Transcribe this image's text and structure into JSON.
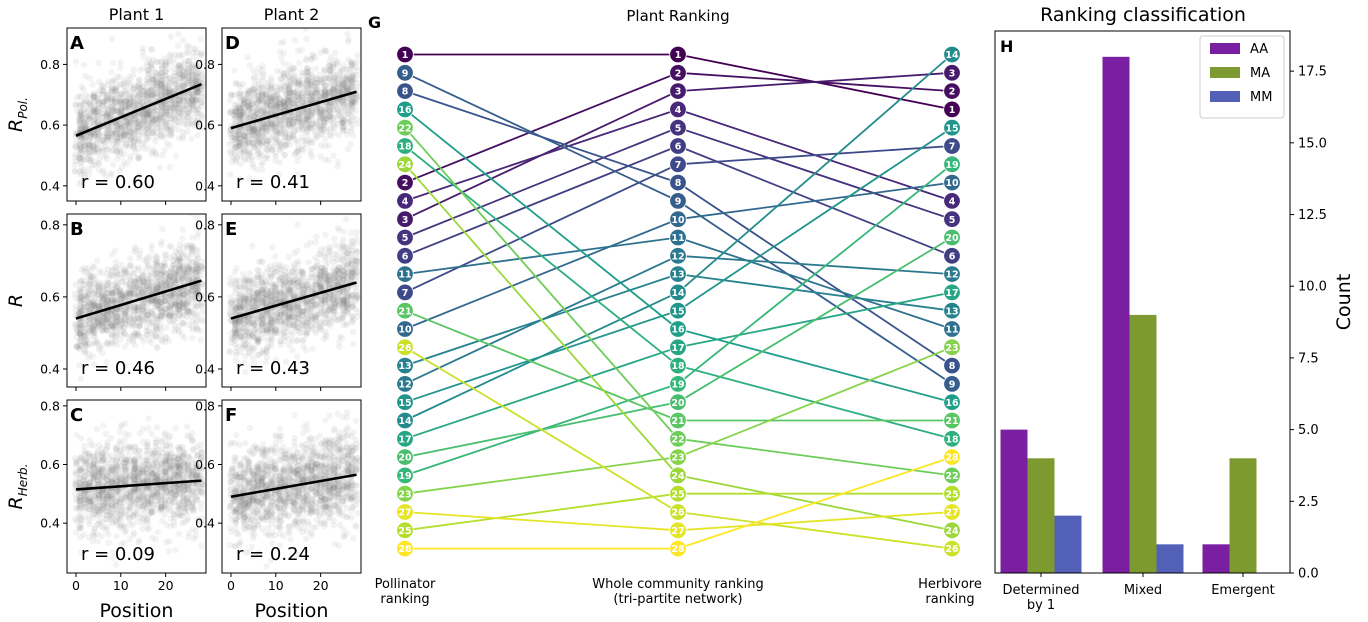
{
  "chart_data": [
    {
      "type": "scatter",
      "id": "A",
      "panel_letter": "A",
      "column_title": "Plant 1",
      "ylabel_base": "R",
      "ylabel_sub": "Pol.",
      "xlim": [
        -2,
        29
      ],
      "ylim": [
        0.35,
        0.92
      ],
      "yticks": [
        0.4,
        0.6,
        0.8
      ],
      "fit_line": {
        "x": [
          0,
          28
        ],
        "y": [
          0.565,
          0.735
        ]
      },
      "annotation": "r = 0.60",
      "point_cloud": {
        "x_range": [
          0,
          28
        ],
        "y_center": [
          0.565,
          0.735
        ],
        "spread": 0.16,
        "n": 1500
      }
    },
    {
      "type": "scatter",
      "id": "D",
      "panel_letter": "D",
      "column_title": "Plant 2",
      "xlim": [
        -2,
        29
      ],
      "ylim": [
        0.35,
        0.92
      ],
      "yticks": [
        0.4,
        0.6,
        0.8
      ],
      "fit_line": {
        "x": [
          0,
          28
        ],
        "y": [
          0.59,
          0.71
        ]
      },
      "annotation": "r = 0.41",
      "point_cloud": {
        "x_range": [
          0,
          28
        ],
        "y_center": [
          0.59,
          0.71
        ],
        "spread": 0.16,
        "n": 1500
      }
    },
    {
      "type": "scatter",
      "id": "B",
      "panel_letter": "B",
      "ylabel_base": "R",
      "ylabel_sub": "",
      "xlim": [
        -2,
        29
      ],
      "ylim": [
        0.35,
        0.83
      ],
      "yticks": [
        0.4,
        0.6,
        0.8
      ],
      "fit_line": {
        "x": [
          0,
          28
        ],
        "y": [
          0.54,
          0.645
        ]
      },
      "annotation": "r = 0.46",
      "point_cloud": {
        "x_range": [
          0,
          28
        ],
        "y_center": [
          0.54,
          0.645
        ],
        "spread": 0.13,
        "n": 1500
      }
    },
    {
      "type": "scatter",
      "id": "E",
      "panel_letter": "E",
      "xlim": [
        -2,
        29
      ],
      "ylim": [
        0.35,
        0.83
      ],
      "yticks": [
        0.4,
        0.6,
        0.8
      ],
      "fit_line": {
        "x": [
          0,
          28
        ],
        "y": [
          0.54,
          0.64
        ]
      },
      "annotation": "r = 0.43",
      "point_cloud": {
        "x_range": [
          0,
          28
        ],
        "y_center": [
          0.54,
          0.64
        ],
        "spread": 0.13,
        "n": 1500
      }
    },
    {
      "type": "scatter",
      "id": "C",
      "panel_letter": "C",
      "ylabel_base": "R",
      "ylabel_sub": "Herb.",
      "xlabel": "Position",
      "xticks": [
        0,
        10,
        20
      ],
      "xlim": [
        -2,
        29
      ],
      "ylim": [
        0.23,
        0.82
      ],
      "yticks": [
        0.4,
        0.6,
        0.8
      ],
      "fit_line": {
        "x": [
          0,
          28
        ],
        "y": [
          0.515,
          0.545
        ]
      },
      "annotation": "r = 0.09",
      "point_cloud": {
        "x_range": [
          0,
          28
        ],
        "y_center": [
          0.515,
          0.545
        ],
        "spread": 0.17,
        "n": 1500
      }
    },
    {
      "type": "scatter",
      "id": "F",
      "panel_letter": "F",
      "xlabel": "Position",
      "xticks": [
        0,
        10,
        20
      ],
      "xlim": [
        -2,
        29
      ],
      "ylim": [
        0.23,
        0.82
      ],
      "yticks": [
        0.4,
        0.6,
        0.8
      ],
      "fit_line": {
        "x": [
          0,
          28
        ],
        "y": [
          0.49,
          0.565
        ]
      },
      "annotation": "r = 0.24",
      "point_cloud": {
        "x_range": [
          0,
          28
        ],
        "y_center": [
          0.49,
          0.565
        ],
        "spread": 0.17,
        "n": 1500
      }
    },
    {
      "type": "bump",
      "id": "G",
      "panel_letter": "G",
      "title": "Plant Ranking",
      "column_labels": {
        "pollinator": [
          "Pollinator",
          "ranking"
        ],
        "community": [
          "Whole community ranking",
          "(tri-partite network)"
        ],
        "herbivore": [
          "Herbivore",
          "ranking"
        ]
      },
      "n_ranks": 28,
      "pollinator_order": [
        1,
        9,
        8,
        16,
        22,
        18,
        24,
        2,
        4,
        3,
        5,
        6,
        11,
        7,
        21,
        10,
        26,
        13,
        12,
        15,
        14,
        17,
        20,
        19,
        23,
        27,
        25,
        28
      ],
      "herbivore_order": [
        14,
        3,
        2,
        1,
        15,
        7,
        19,
        10,
        4,
        5,
        20,
        6,
        12,
        17,
        13,
        11,
        23,
        8,
        9,
        16,
        21,
        18,
        28,
        22,
        25,
        27,
        24,
        26
      ]
    },
    {
      "type": "bar",
      "id": "H",
      "panel_letter": "H",
      "title": "Ranking classification",
      "ylabel": "Count",
      "categories": [
        [
          "Determined",
          "by 1"
        ],
        [
          "Mixed"
        ],
        [
          "Emergent"
        ]
      ],
      "series": [
        {
          "name": "AA",
          "color": "#7b1fa2",
          "values": [
            5,
            18,
            1
          ]
        },
        {
          "name": "MA",
          "color": "#7c9a30",
          "values": [
            4,
            9,
            4
          ]
        },
        {
          "name": "MM",
          "color": "#5360b8",
          "values": [
            2,
            1,
            0
          ]
        }
      ],
      "ylim": [
        0,
        18.9
      ],
      "yticks": [
        "0.0",
        "2.5",
        "5.0",
        "7.5",
        "10.0",
        "12.5",
        "15.0",
        "17.5"
      ],
      "legend_position": "top-right"
    }
  ]
}
